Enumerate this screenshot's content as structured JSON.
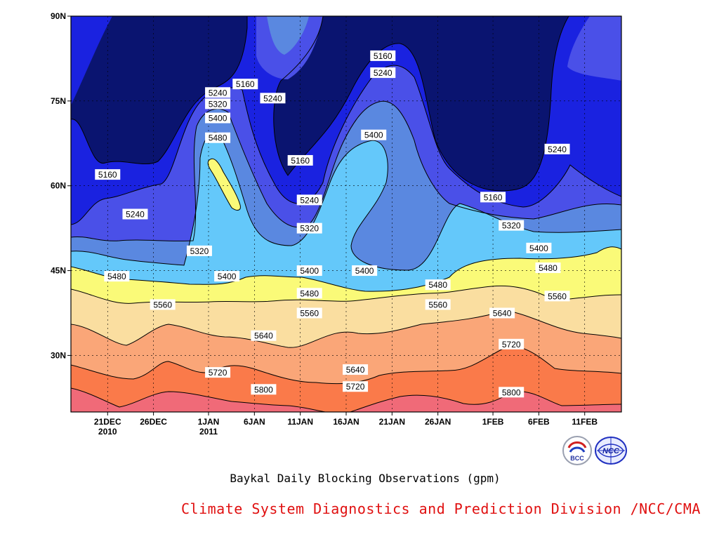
{
  "caption": "Baykal Daily Blocking Observations (gpm)",
  "credit": "Climate System Diagnostics and Prediction Division /NCC/CMA",
  "logos": {
    "bcc_text": "BCC",
    "ncc_text": "NCC"
  },
  "chart_data": {
    "type": "contour",
    "title": "Baykal Daily Blocking Observations (gpm)",
    "units": "gpm",
    "ytick_labels": [
      "90N",
      "75N",
      "60N",
      "45N",
      "30N"
    ],
    "xtick_labels": [
      "21DEC",
      "26DEC",
      "1JAN",
      "6JAN",
      "11JAN",
      "16JAN",
      "21JAN",
      "26JAN",
      "1FEB",
      "6FEB",
      "11FEB"
    ],
    "xtick_year_labels": [
      "2010",
      "",
      "2011",
      "",
      "",
      "",
      "",
      "",
      "",
      "",
      ""
    ],
    "xlim": [
      "2010-12-17",
      "2011-02-15"
    ],
    "ylim": [
      20,
      90
    ],
    "grid": true,
    "contour_levels": [
      5160,
      5240,
      5320,
      5400,
      5480,
      5560,
      5640,
      5720,
      5800
    ],
    "band_colors": [
      "#0a1470",
      "#1a22e0",
      "#4a50e8",
      "#5a88e0",
      "#64c8fa",
      "#fafa78",
      "#fadea0",
      "#faa678",
      "#fa7a4a",
      "#f06a78"
    ],
    "contour_labels": [
      {
        "text": "5160",
        "date": "2010-12-21",
        "lat": 62
      },
      {
        "text": "5240",
        "date": "2010-12-24",
        "lat": 55
      },
      {
        "text": "5480",
        "date": "2010-12-22",
        "lat": 44
      },
      {
        "text": "5560",
        "date": "2010-12-27",
        "lat": 39
      },
      {
        "text": "5160",
        "date": "2011-01-05",
        "lat": 78
      },
      {
        "text": "5240",
        "date": "2011-01-02",
        "lat": 76.5
      },
      {
        "text": "5320",
        "date": "2011-01-02",
        "lat": 74.5
      },
      {
        "text": "5400",
        "date": "2011-01-02",
        "lat": 72
      },
      {
        "text": "5480",
        "date": "2011-01-02",
        "lat": 68.5
      },
      {
        "text": "5320",
        "date": "2010-12-31",
        "lat": 48.5
      },
      {
        "text": "5400",
        "date": "2011-01-03",
        "lat": 44
      },
      {
        "text": "5640",
        "date": "2011-01-07",
        "lat": 33.5
      },
      {
        "text": "5720",
        "date": "2011-01-02",
        "lat": 27
      },
      {
        "text": "5800",
        "date": "2011-01-07",
        "lat": 24
      },
      {
        "text": "5240",
        "date": "2011-01-08",
        "lat": 75.5
      },
      {
        "text": "5160",
        "date": "2011-01-11",
        "lat": 64.5
      },
      {
        "text": "5240",
        "date": "2011-01-12",
        "lat": 57.5
      },
      {
        "text": "5320",
        "date": "2011-01-12",
        "lat": 52.5
      },
      {
        "text": "5400",
        "date": "2011-01-12",
        "lat": 45
      },
      {
        "text": "5480",
        "date": "2011-01-12",
        "lat": 41
      },
      {
        "text": "5560",
        "date": "2011-01-12",
        "lat": 37.5
      },
      {
        "text": "5640",
        "date": "2011-01-17",
        "lat": 27.5
      },
      {
        "text": "5720",
        "date": "2011-01-17",
        "lat": 24.5
      },
      {
        "text": "5160",
        "date": "2011-01-20",
        "lat": 83
      },
      {
        "text": "5240",
        "date": "2011-01-20",
        "lat": 80
      },
      {
        "text": "5400",
        "date": "2011-01-19",
        "lat": 69
      },
      {
        "text": "5400",
        "date": "2011-01-18",
        "lat": 45
      },
      {
        "text": "5480",
        "date": "2011-01-26",
        "lat": 42.5
      },
      {
        "text": "5560",
        "date": "2011-01-26",
        "lat": 39
      },
      {
        "text": "5160",
        "date": "2011-02-01",
        "lat": 58
      },
      {
        "text": "5320",
        "date": "2011-02-03",
        "lat": 53
      },
      {
        "text": "5400",
        "date": "2011-02-06",
        "lat": 49
      },
      {
        "text": "5480",
        "date": "2011-02-07",
        "lat": 45.5
      },
      {
        "text": "5640",
        "date": "2011-02-02",
        "lat": 37.5
      },
      {
        "text": "5560",
        "date": "2011-02-08",
        "lat": 40.5
      },
      {
        "text": "5720",
        "date": "2011-02-03",
        "lat": 32
      },
      {
        "text": "5800",
        "date": "2011-02-03",
        "lat": 23.5
      },
      {
        "text": "5240",
        "date": "2011-02-08",
        "lat": 66.5
      }
    ]
  }
}
